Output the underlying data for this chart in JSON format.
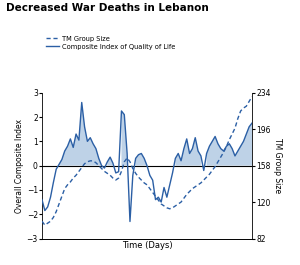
{
  "title": "Decreased War Deaths in Lebanon",
  "xlabel": "Time (Days)",
  "ylabel_left": "Overall Composite Index",
  "ylabel_right": "TM Group Size",
  "ylim_left": [
    -3,
    3
  ],
  "ylim_right": [
    82,
    234
  ],
  "yticks_left": [
    -3,
    -2,
    -1,
    0,
    1,
    2,
    3
  ],
  "yticks_right": [
    82,
    120,
    158,
    196,
    234
  ],
  "line_color": "#2B5FA5",
  "fill_color": "#a8c4e0",
  "bg_color": "#ffffff",
  "legend_entries": [
    "TM Group Size",
    "Composite Index of Quality of Life"
  ],
  "composite_index": [
    -1.4,
    -1.85,
    -1.7,
    -1.3,
    -0.7,
    -0.15,
    0.05,
    0.25,
    0.6,
    0.8,
    1.1,
    0.75,
    1.3,
    1.05,
    2.6,
    1.6,
    1.0,
    1.15,
    0.9,
    0.7,
    0.3,
    0.0,
    -0.1,
    0.15,
    0.35,
    0.1,
    -0.3,
    -0.25,
    2.25,
    2.1,
    0.5,
    -2.3,
    -0.4,
    0.3,
    0.45,
    0.5,
    0.3,
    0.0,
    -0.4,
    -0.6,
    -1.4,
    -1.3,
    -1.5,
    -0.9,
    -1.3,
    -0.8,
    -0.3,
    0.3,
    0.5,
    0.2,
    0.7,
    1.1,
    0.5,
    0.7,
    1.15,
    0.6,
    0.4,
    -0.2,
    0.5,
    0.8,
    1.0,
    1.2,
    0.9,
    0.7,
    0.6,
    0.8,
    0.9,
    0.7,
    0.4,
    0.6,
    0.8,
    1.0,
    1.3,
    1.6,
    1.75
  ],
  "tm_group_size": [
    100,
    96,
    98,
    100,
    104,
    110,
    118,
    126,
    134,
    138,
    141,
    145,
    148,
    152,
    156,
    160,
    162,
    163,
    163,
    161,
    158,
    155,
    152,
    150,
    148,
    145,
    143,
    145,
    152,
    162,
    166,
    162,
    155,
    150,
    146,
    143,
    140,
    138,
    134,
    130,
    126,
    122,
    118,
    116,
    114,
    113,
    114,
    116,
    118,
    120,
    124,
    128,
    131,
    134,
    136,
    138,
    140,
    143,
    146,
    149,
    153,
    157,
    162,
    167,
    172,
    178,
    185,
    191,
    197,
    207,
    215,
    218,
    220,
    225,
    230
  ]
}
